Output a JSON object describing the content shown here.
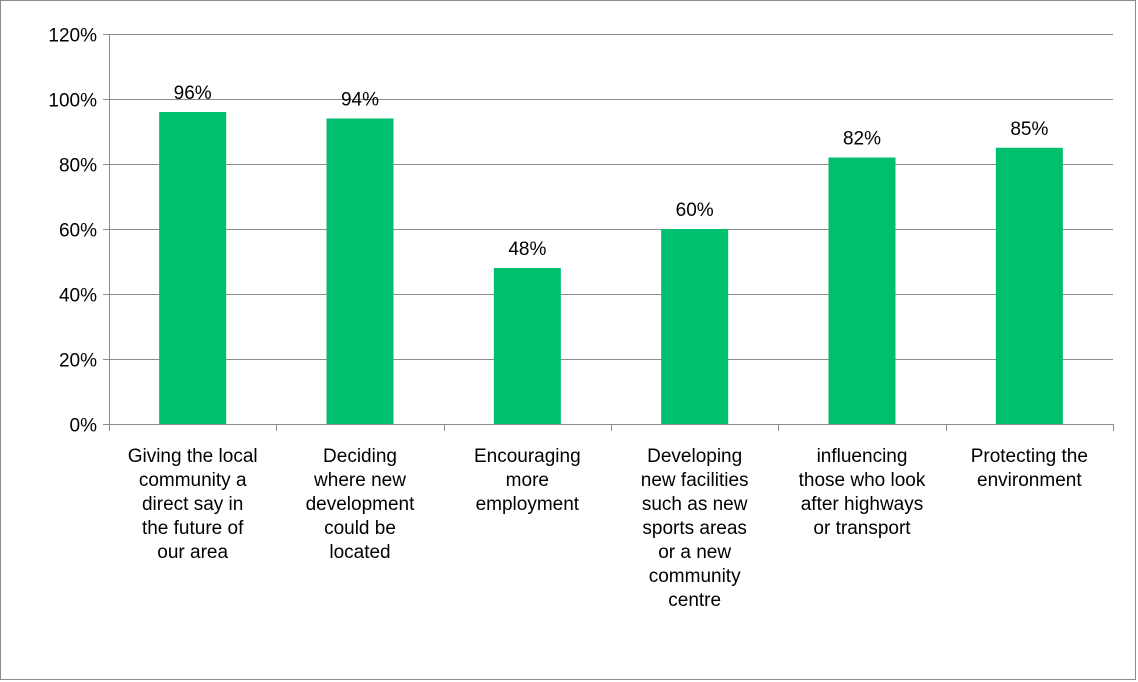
{
  "chart_data": {
    "type": "bar",
    "title": "",
    "xlabel": "",
    "ylabel": "",
    "ylim": [
      0,
      120
    ],
    "y_ticks": [
      "0%",
      "20%",
      "40%",
      "60%",
      "80%",
      "100%",
      "120%"
    ],
    "y_tick_values": [
      0,
      20,
      40,
      60,
      80,
      100,
      120
    ],
    "grid": true,
    "legend": "none",
    "bar_color": "#00bf6f",
    "categories": [
      [
        "Giving the local",
        "community a",
        "direct say in",
        "the future of",
        "our area"
      ],
      [
        "Deciding",
        "where new",
        "development",
        "could be",
        "located"
      ],
      [
        "Encouraging",
        "more",
        "employment"
      ],
      [
        "Developing",
        "new facilities",
        "such as new",
        "sports areas",
        "or a new",
        "community",
        "centre"
      ],
      [
        "influencing",
        "those who look",
        "after highways",
        "or transport"
      ],
      [
        "Protecting the",
        "environment"
      ]
    ],
    "values": [
      96,
      94,
      48,
      60,
      82,
      85
    ],
    "data_labels": [
      "96%",
      "94%",
      "48%",
      "60%",
      "82%",
      "85%"
    ]
  }
}
